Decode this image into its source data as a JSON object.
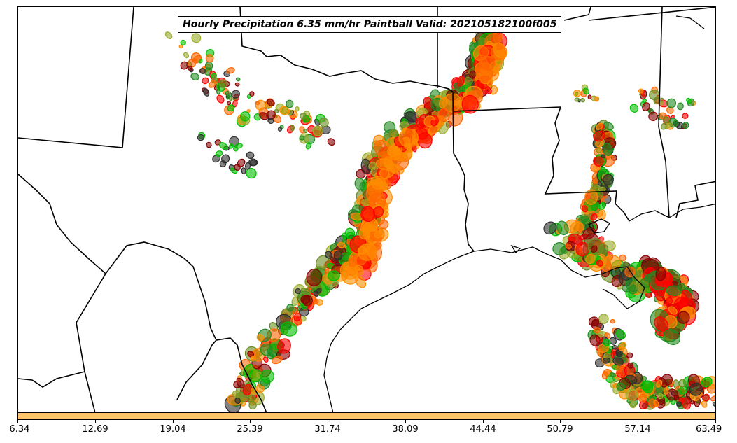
{
  "title": "Hourly Precipitation 6.35 mm/hr Paintball Valid: 202105182100f005",
  "colors": {
    "colorbar_fill": "#ffc46b",
    "borders": "#000000",
    "paintball_palette": [
      "#00c000",
      "#ff8c00",
      "#ff0000",
      "#8b0000",
      "#6b8e23",
      "#228b22",
      "#ff6600",
      "#9aab2b",
      "#2f2f2f"
    ]
  },
  "colorbar": {
    "tick_labels": [
      "6.34",
      "12.69",
      "19.04",
      "25.39",
      "31.74",
      "38.09",
      "44.44",
      "50.79",
      "57.14",
      "63.49"
    ]
  }
}
